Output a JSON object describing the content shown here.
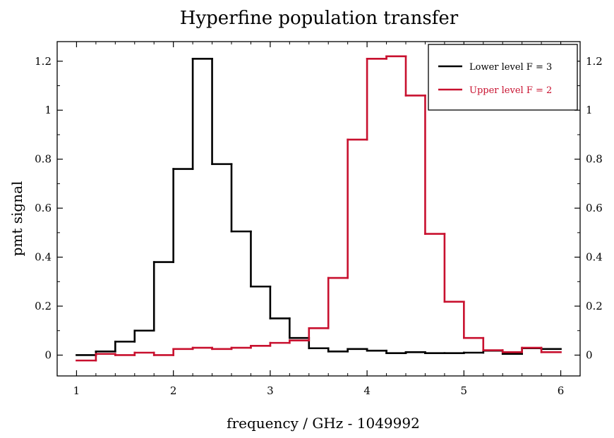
{
  "chart_data": {
    "type": "line",
    "step": true,
    "title": "Hyperfine population transfer",
    "xlabel": "frequency / GHz - 1049992",
    "ylabel": "pmt signal",
    "xlim": [
      0.8,
      6.2
    ],
    "ylim": [
      -0.085,
      1.28
    ],
    "x_ticks": [
      1,
      2,
      3,
      4,
      5,
      6
    ],
    "x_tick_labels": [
      "1",
      "2",
      "3",
      "4",
      "5",
      "6"
    ],
    "y_ticks": [
      0,
      0.2,
      0.4,
      0.6,
      0.8,
      1,
      1.2
    ],
    "y_tick_labels": [
      "0",
      "0.2",
      "0.4",
      "0.6",
      "0.8",
      "1",
      "1.2"
    ],
    "right_axis_tick_labels": true,
    "grid": false,
    "legend_position": "top-right",
    "bin_edges": [
      1.0,
      1.2,
      1.4,
      1.6,
      1.8,
      2.0,
      2.2,
      2.4,
      2.6,
      2.8,
      3.0,
      3.2,
      3.4,
      3.6,
      3.8,
      4.0,
      4.2,
      4.4,
      4.6,
      4.8,
      5.0,
      5.2,
      5.4,
      5.6,
      5.8,
      6.0
    ],
    "series": [
      {
        "name": "Lower level F = 3",
        "color": "#000000",
        "values": [
          0.0,
          0.015,
          0.055,
          0.1,
          0.38,
          0.76,
          1.21,
          0.78,
          0.505,
          0.28,
          0.15,
          0.07,
          0.028,
          0.015,
          0.025,
          0.018,
          0.008,
          0.012,
          0.008,
          0.008,
          0.01,
          0.018,
          0.005,
          0.028,
          0.025
        ]
      },
      {
        "name": "Upper level F = 2",
        "color": "#c8102e",
        "values": [
          -0.022,
          0.005,
          0.0,
          0.01,
          0.0,
          0.025,
          0.03,
          0.025,
          0.03,
          0.038,
          0.05,
          0.06,
          0.11,
          0.315,
          0.88,
          1.21,
          1.22,
          1.06,
          0.495,
          0.218,
          0.07,
          0.02,
          0.012,
          0.03,
          0.012
        ]
      }
    ]
  }
}
